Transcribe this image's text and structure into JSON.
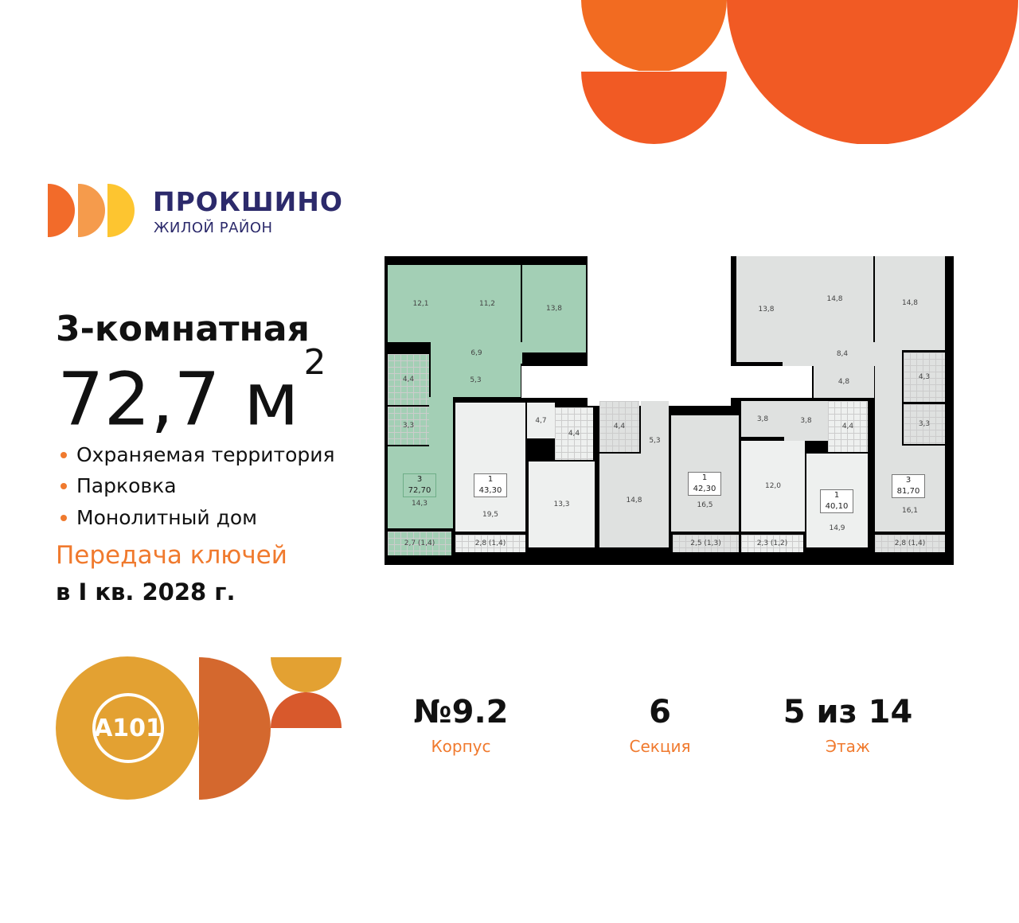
{
  "brand": {
    "name": "ПРОКШИНО",
    "subtitle": "ЖИЛОЙ РАЙОН",
    "logo_colors": [
      "#f26b2a",
      "#f59b4c",
      "#fdc530"
    ]
  },
  "apartment": {
    "type": "3-комнатная",
    "area": "72,7 м",
    "area_sup": "2"
  },
  "features": [
    "Охраняемая территория",
    "Парковка",
    "Монолитный дом"
  ],
  "handover": {
    "label": "Передача ключей",
    "date": "в I кв. 2028 г."
  },
  "developer_logo": {
    "text": "A101",
    "color": "#e3a132"
  },
  "stats": [
    {
      "value": "№9.2",
      "label": "Корпус"
    },
    {
      "value": "6",
      "label": "Секция"
    },
    {
      "value": "5 из 14",
      "label": "Этаж"
    }
  ],
  "colors": {
    "accent": "#f07a2e",
    "selected_apartment": "#a3cfb5",
    "deco_orange": "#f15a24"
  },
  "plan": {
    "rooms": [
      "12,1",
      "11,2",
      "13,8",
      "6,9",
      "5,3",
      "4,4",
      "3,3",
      "14,3",
      "2,7 (1,4)",
      "19,5",
      "4,7",
      "4,4",
      "13,3",
      "2,8 (1,4)",
      "4,4",
      "5,3",
      "14,8",
      "16,5",
      "2,5 (1,3)",
      "3,8",
      "3,8",
      "12,0",
      "2,3 (1,2)",
      "4,4",
      "14,9",
      "13,8",
      "14,8",
      "14,8",
      "8,4",
      "4,8",
      "4,3",
      "3,3",
      "16,1",
      "2,8 (1,4)"
    ],
    "plaques": [
      {
        "rooms": "3",
        "area": "72,70"
      },
      {
        "rooms": "1",
        "area": "43,30"
      },
      {
        "rooms": "1",
        "area": "42,30"
      },
      {
        "rooms": "1",
        "area": "40,10"
      },
      {
        "rooms": "3",
        "area": "81,70"
      }
    ]
  }
}
